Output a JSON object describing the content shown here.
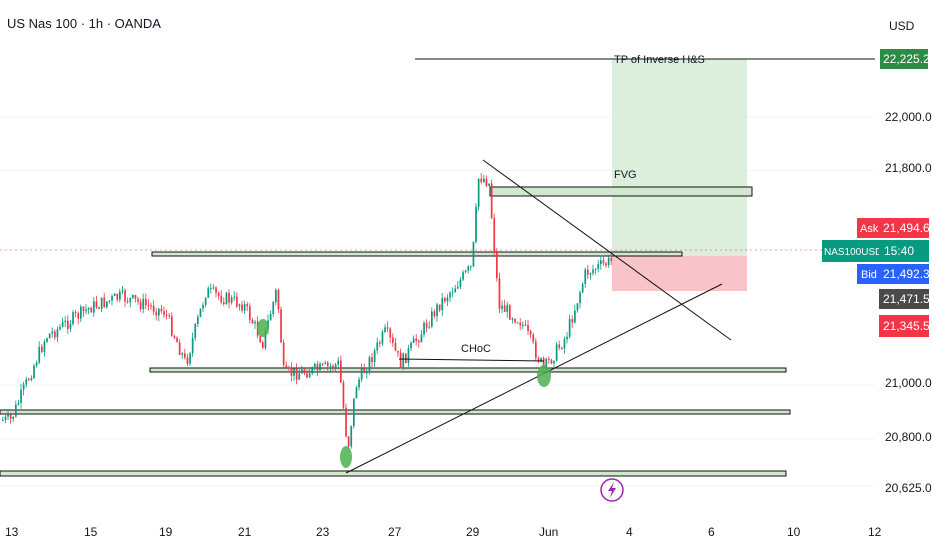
{
  "header": {
    "symbol_title": "US Nas 100 · 1h · OANDA",
    "currency": "USD"
  },
  "colors": {
    "up": "#089981",
    "down": "#f23645",
    "tp_green": "#2e8b47",
    "grid": "#f0f3fa",
    "dot": "#4caf50",
    "target_zone": "#d6ecd6",
    "stop_zone": "#f7b9bf",
    "purple": "#9c27b0"
  },
  "chart_data": {
    "type": "candlestick",
    "instrument": "US Nas 100",
    "timeframe": "1h",
    "broker": "OANDA",
    "y_axis": {
      "unit": "USD",
      "ticks": [
        "22,000.0",
        "21,800.0",
        "21,000.0",
        "20,800.0",
        "20,625.0"
      ],
      "tick_values": [
        22000,
        21800,
        21000,
        20800,
        20625
      ]
    },
    "x_axis": {
      "tick_labels": [
        "13",
        "15",
        "19",
        "21",
        "23",
        "27",
        "29",
        "Jun",
        "4",
        "6",
        "10",
        "12"
      ]
    },
    "price_path": [
      {
        "x": "13",
        "price": 20870
      },
      {
        "x": "14",
        "price": 21180
      },
      {
        "x": "15",
        "price": 21290
      },
      {
        "x": "16",
        "price": 21330
      },
      {
        "x": "19",
        "price": 21275
      },
      {
        "x": "19.5",
        "price": 21080
      },
      {
        "x": "20",
        "price": 21350
      },
      {
        "x": "21",
        "price": 21300
      },
      {
        "x": "21.5",
        "price": 21160
      },
      {
        "x": "22",
        "price": 21360
      },
      {
        "x": "22.5",
        "price": 21040
      },
      {
        "x": "23",
        "price": 21060
      },
      {
        "x": "23.5",
        "price": 21080
      },
      {
        "x": "24",
        "price": 20760
      },
      {
        "x": "24.3",
        "price": 21000
      },
      {
        "x": "26",
        "price": 21200
      },
      {
        "x": "27",
        "price": 21080
      },
      {
        "x": "28",
        "price": 21310
      },
      {
        "x": "29",
        "price": 21440
      },
      {
        "x": "29.3",
        "price": 21780
      },
      {
        "x": "29.6",
        "price": 21760
      },
      {
        "x": "30",
        "price": 21300
      },
      {
        "x": "31",
        "price": 21240
      },
      {
        "x": "Jun",
        "price": 21060
      },
      {
        "x": "2",
        "price": 21180
      },
      {
        "x": "3",
        "price": 21420
      },
      {
        "x": "3.5",
        "price": 21465
      }
    ],
    "drawings": {
      "tp_label": "TP of Inverse H&S",
      "tp_price": "22,225.2",
      "fvg_label": "FVG",
      "choc_label": "CHoC"
    },
    "price_labels": {
      "ask_label": "Ask",
      "ask_value": "21,494.6",
      "symbol_label": "NAS100USD",
      "countdown": "15:40",
      "bid_label": "Bid",
      "bid_value": "21,492.3",
      "level_1": "21,471.5",
      "level_2": "21,345.5"
    },
    "grid": true
  }
}
